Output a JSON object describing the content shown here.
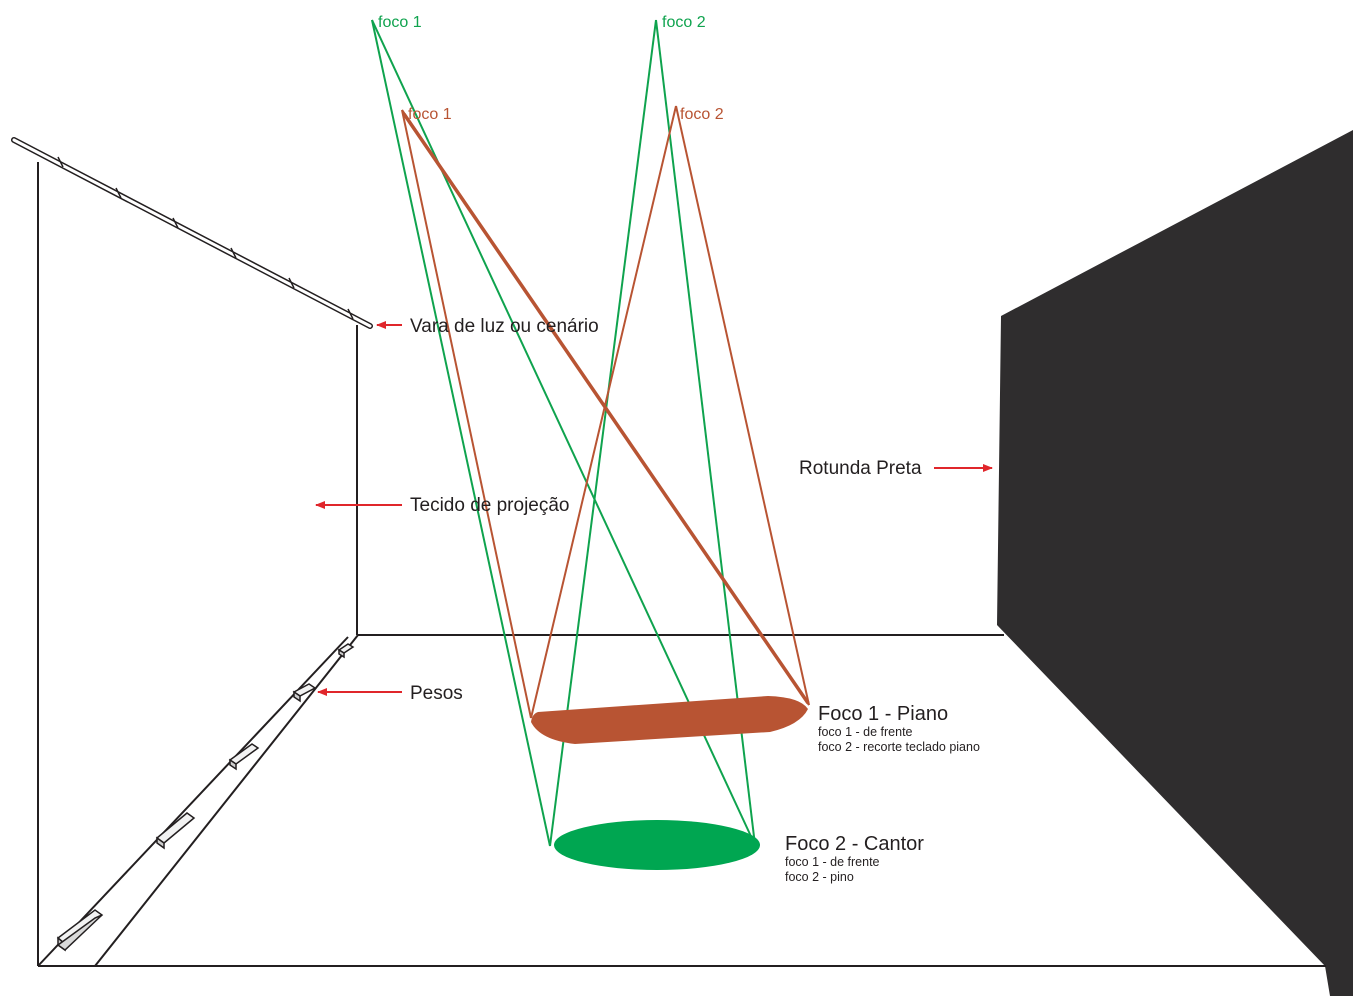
{
  "colors": {
    "green": "#0fa34e",
    "brown": "#b85433",
    "red_arrow": "#e0262b",
    "black_backdrop": "#2f2d2e",
    "outline": "#231f20"
  },
  "fixtures": {
    "green_focus_1": "foco 1",
    "green_focus_2": "foco 2",
    "brown_focus_1": "foco 1",
    "brown_focus_2": "foco 2"
  },
  "labels": {
    "batten": "Vara de luz ou cenário",
    "projection_fabric": "Tecido de projeção",
    "weights": "Pesos",
    "black_backdrop": "Rotunda Preta"
  },
  "areas": {
    "piano": {
      "title": "Foco 1 - Piano",
      "line1": "foco 1 - de frente",
      "line2": "foco 2 - recorte teclado piano"
    },
    "singer": {
      "title": "Foco 2 - Cantor",
      "line1": "foco 1 - de frente",
      "line2": "foco 2 - pino"
    }
  }
}
